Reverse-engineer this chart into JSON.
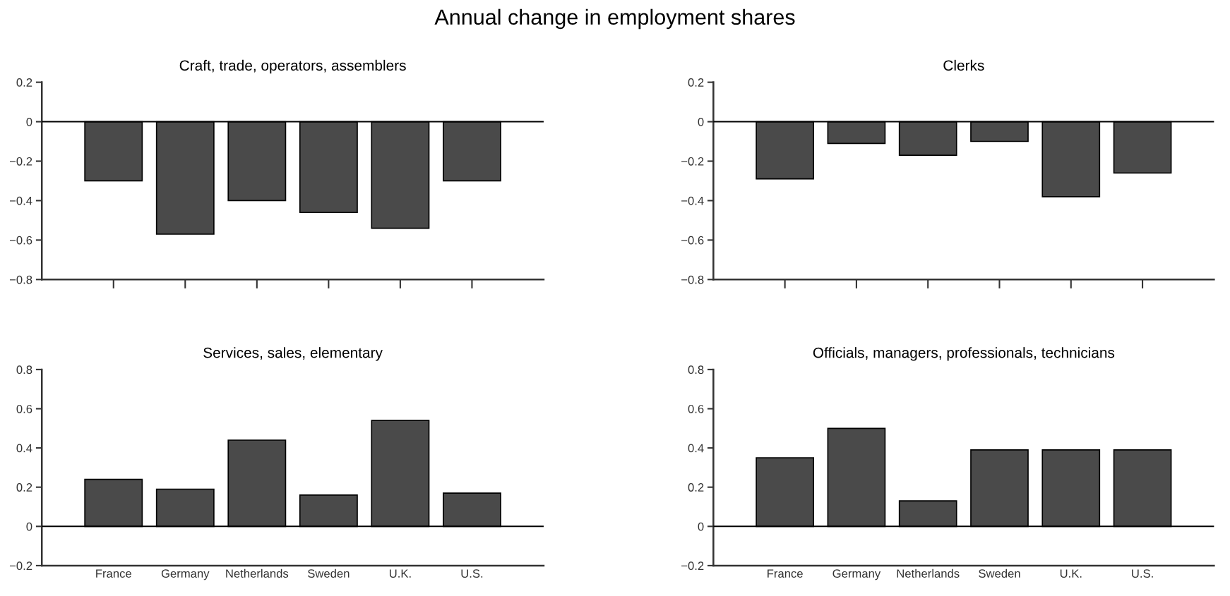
{
  "chart_data": [
    {
      "type": "bar",
      "title": "Annual change in employment shares",
      "subtitle": "Craft, trade, operators, assemblers",
      "categories": [
        null,
        null,
        null,
        null,
        null,
        null
      ],
      "values": [
        -0.3,
        -0.57,
        -0.4,
        -0.46,
        -0.54,
        -0.3
      ],
      "color": "#4a4a4a",
      "ylim": [
        -0.8,
        0.2
      ],
      "yticks": [
        {
          "value": -0.8,
          "label": "−0.8"
        },
        {
          "value": -0.6,
          "label": "−0.6"
        },
        {
          "value": -0.4,
          "label": "−0.4"
        },
        {
          "value": -0.2,
          "label": "−0.2"
        },
        0,
        0.2
      ],
      "tick_labels": "y",
      "ref_lines": [
        {
          "axis": "y",
          "value": 0,
          "color": "#000000"
        }
      ],
      "grid": false,
      "legend": false
    },
    {
      "type": "bar",
      "subtitle": "Clerks",
      "categories": [
        null,
        null,
        null,
        null,
        null,
        null
      ],
      "values": [
        -0.29,
        -0.11,
        -0.17,
        -0.1,
        -0.38,
        -0.26
      ],
      "color": "#4a4a4a",
      "ylim": [
        -0.8,
        0.2
      ],
      "yticks": [
        {
          "value": -0.8,
          "label": "−0.8"
        },
        {
          "value": -0.6,
          "label": "−0.6"
        },
        {
          "value": -0.4,
          "label": "−0.4"
        },
        {
          "value": -0.2,
          "label": "−0.2"
        },
        0,
        0.2
      ],
      "tick_labels": "y",
      "ref_lines": [
        {
          "axis": "y",
          "value": 0,
          "color": "#000000"
        }
      ],
      "grid": false,
      "legend": false
    },
    {
      "type": "bar",
      "subtitle": "Services, sales, elementary",
      "categories": [
        "France",
        "Germany",
        "Netherlands",
        "Sweden",
        "U.K.",
        "U.S."
      ],
      "values": [
        0.24,
        0.19,
        0.44,
        0.16,
        0.54,
        0.17
      ],
      "color": "#4a4a4a",
      "ylim": [
        -0.2,
        0.8
      ],
      "yticks": [
        {
          "value": -0.2,
          "label": "−0.2"
        },
        0,
        0.2,
        0.4,
        0.6,
        0.8
      ],
      "ref_lines": [
        {
          "axis": "y",
          "value": 0,
          "color": "#000000"
        }
      ],
      "grid": false,
      "legend": false
    },
    {
      "type": "bar",
      "subtitle": "Officials, managers, professionals, technicians",
      "categories": [
        "France",
        "Germany",
        "Netherlands",
        "Sweden",
        "U.K.",
        "U.S."
      ],
      "values": [
        0.35,
        0.5,
        0.13,
        0.39,
        0.39,
        0.39
      ],
      "color": "#4a4a4a",
      "ylim": [
        -0.2,
        0.8
      ],
      "yticks": [
        {
          "value": -0.2,
          "label": "−0.2"
        },
        0,
        0.2,
        0.4,
        0.6,
        0.8
      ],
      "ref_lines": [
        {
          "axis": "y",
          "value": 0,
          "color": "#000000"
        }
      ],
      "grid": false,
      "legend": false
    }
  ]
}
